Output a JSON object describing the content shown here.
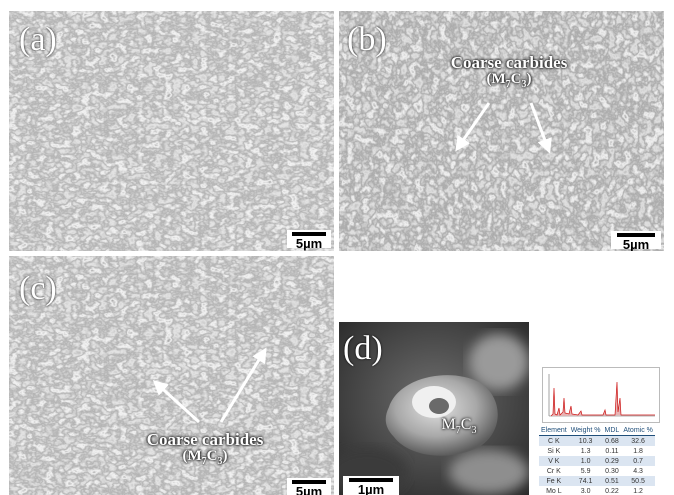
{
  "panels": {
    "a": {
      "label": "(a)",
      "scale": "5µm"
    },
    "b": {
      "label": "(b)",
      "scale": "5µm",
      "annotation": "Coarse carbides",
      "formula": {
        "m": "M",
        "s1": "7",
        "c": "C",
        "s2": "3"
      }
    },
    "c": {
      "label": "(c)",
      "scale": "5µm",
      "annotation": "Coarse carbides",
      "formula": {
        "m": "M",
        "s1": "7",
        "c": "C",
        "s2": "3"
      }
    },
    "d": {
      "label": "(d)",
      "scale": "1µm",
      "formula": {
        "m": "M",
        "s1": "7",
        "c": "C",
        "s2": "3"
      }
    }
  },
  "eds": {
    "headers": [
      "Element",
      "Weight %",
      "MDL",
      "Atomic %"
    ],
    "rows": [
      [
        "C K",
        "10.3",
        "0.68",
        "32.6"
      ],
      [
        "Si K",
        "1.3",
        "0.11",
        "1.8"
      ],
      [
        "V K",
        "1.0",
        "0.29",
        "0.7"
      ],
      [
        "Cr K",
        "5.9",
        "0.30",
        "4.3"
      ],
      [
        "Fe K",
        "74.1",
        "0.51",
        "50.5"
      ],
      [
        "Mo L",
        "3.0",
        "0.22",
        "1.2"
      ]
    ]
  },
  "colors": {
    "texture_light": "#c8c8c8",
    "texture_dark": "#3a3a3a",
    "eds_peak": "#cc1010",
    "header_blue": "#1f4e79"
  }
}
